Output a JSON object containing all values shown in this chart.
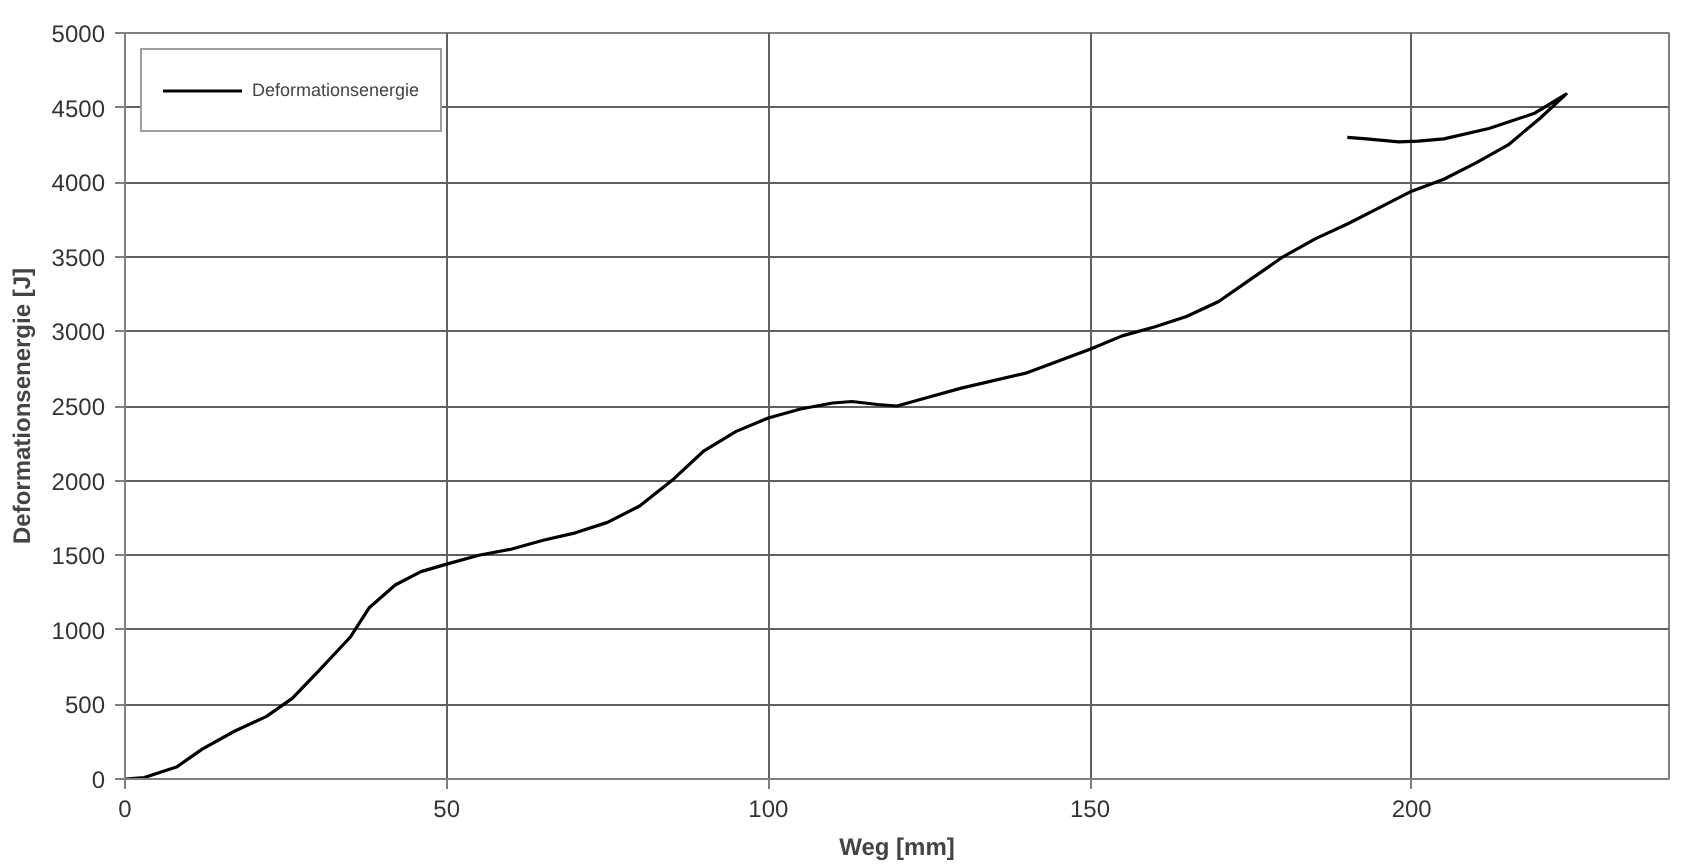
{
  "chart_data": {
    "type": "line",
    "xlabel": "Weg [mm]",
    "ylabel": "Deformationsenergie [J]",
    "xlim": [
      0,
      240
    ],
    "xticks": [
      0,
      50,
      100,
      150,
      200
    ],
    "ylim": [
      0,
      5000
    ],
    "yticks": [
      0,
      500,
      1000,
      1500,
      2000,
      2500,
      3000,
      3500,
      4000,
      4500,
      5000
    ],
    "grid": true,
    "legend": "top left",
    "marker": "none",
    "line_style": "solid",
    "series": [
      {
        "name": "Deformationsenergie",
        "color": "#000000",
        "x": [
          0,
          3,
          8,
          12,
          17,
          22,
          26,
          30,
          35,
          38,
          42,
          46,
          50,
          55,
          60,
          65,
          70,
          75,
          80,
          85,
          90,
          95,
          100,
          105,
          110,
          113,
          117,
          120,
          125,
          130,
          140,
          145,
          150,
          155,
          160,
          165,
          170,
          175,
          180,
          185,
          190,
          195,
          200,
          205,
          210,
          215,
          220,
          224,
          219,
          212,
          205,
          201,
          198,
          193,
          190
        ],
        "values": [
          0,
          10,
          80,
          200,
          320,
          420,
          540,
          720,
          950,
          1150,
          1300,
          1390,
          1440,
          1500,
          1540,
          1600,
          1650,
          1720,
          1830,
          2000,
          2200,
          2330,
          2420,
          2480,
          2520,
          2530,
          2510,
          2500,
          2560,
          2620,
          2720,
          2800,
          2880,
          2970,
          3030,
          3100,
          3200,
          3350,
          3500,
          3620,
          3720,
          3830,
          3940,
          4020,
          4130,
          4250,
          4430,
          4590,
          4460,
          4360,
          4290,
          4275,
          4270,
          4290,
          4300
        ]
      }
    ]
  }
}
